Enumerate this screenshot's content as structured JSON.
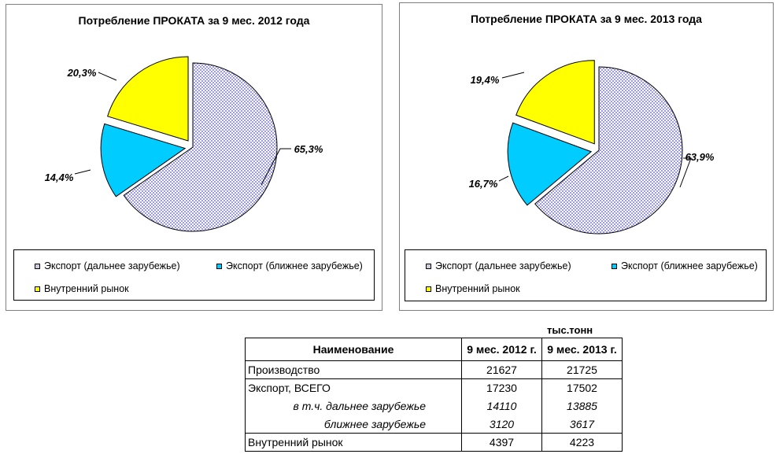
{
  "chart_data": [
    {
      "type": "pie",
      "title": "Потребление  ПРОКАТА за 9 мес. 2012 года",
      "categories": [
        "Экспорт (дальнее зарубежье)",
        "Экспорт (ближнее зарубежье)",
        "Внутренний рынок"
      ],
      "values": [
        65.3,
        14.4,
        20.3
      ],
      "data_labels": [
        "65,3%",
        "14,4%",
        "20,3%"
      ],
      "colors": [
        "#9a9ae8",
        "#00ccff",
        "#ffff00"
      ],
      "legend_position": "bottom"
    },
    {
      "type": "pie",
      "title": "Потребление ПРОКАТА  за 9 мес. 2013 года",
      "categories": [
        "Экспорт (дальнее зарубежье)",
        "Экспорт (ближнее зарубежье)",
        "Внутренний рынок"
      ],
      "values": [
        63.9,
        16.7,
        19.4
      ],
      "data_labels": [
        "63,9%",
        "16,7%",
        "19,4%"
      ],
      "colors": [
        "#9a9ae8",
        "#00ccff",
        "#ffff00"
      ],
      "legend_position": "bottom"
    },
    {
      "type": "table",
      "unit": "тыс.тонн",
      "headers": [
        "Наименование",
        "9 мес. 2012 г.",
        "9 мес. 2013 г."
      ],
      "rows": [
        [
          "Производство",
          "21627",
          "21725"
        ],
        [
          "Экспорт, ВСЕГО",
          "17230",
          "17502"
        ],
        [
          "в т.ч. дальнее зарубежье",
          "14110",
          "13885"
        ],
        [
          "ближнее зарубежье",
          "3120",
          "3617"
        ],
        [
          "Внутренний  рынок",
          "4397",
          "4223"
        ]
      ]
    }
  ]
}
